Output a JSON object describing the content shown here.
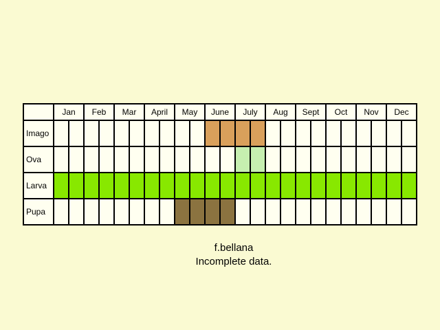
{
  "chart_data": {
    "type": "table",
    "months": [
      "Jan",
      "Feb",
      "Mar",
      "April",
      "May",
      "June",
      "July",
      "Aug",
      "Sept",
      "Oct",
      "Nov",
      "Dec"
    ],
    "weeks_per_month": 2,
    "stages": [
      {
        "name": "Imago",
        "color": "#d9a05b",
        "active_periods": [
          11,
          12,
          13,
          14
        ]
      },
      {
        "name": "Ova",
        "color": "#c6efb0",
        "active_periods": [
          13,
          14
        ]
      },
      {
        "name": "Larva",
        "color": "#88e800",
        "active_periods": [
          1,
          2,
          3,
          4,
          5,
          6,
          7,
          8,
          9,
          10,
          11,
          12,
          13,
          14,
          15,
          16,
          17,
          18,
          19,
          20,
          21,
          22,
          23,
          24
        ]
      },
      {
        "name": "Pupa",
        "color": "#8b7340",
        "active_periods": [
          9,
          10,
          11,
          12
        ]
      }
    ],
    "empty_color": "#fffff0",
    "grid_color": "#000000"
  },
  "caption": {
    "line1": "f.bellana",
    "line2": "Incomplete data."
  }
}
